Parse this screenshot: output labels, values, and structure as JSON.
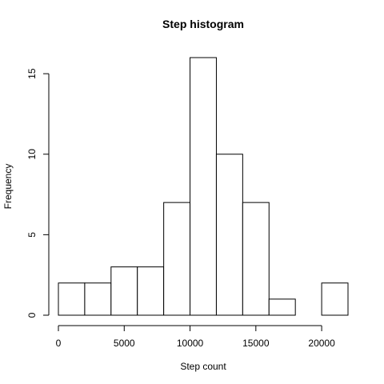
{
  "chart_data": {
    "type": "bar",
    "title": "Step histogram",
    "xlabel": "Step count",
    "ylabel": "Frequency",
    "bins": [
      {
        "start": 0,
        "end": 2000,
        "count": 2
      },
      {
        "start": 2000,
        "end": 4000,
        "count": 2
      },
      {
        "start": 4000,
        "end": 6000,
        "count": 3
      },
      {
        "start": 6000,
        "end": 8000,
        "count": 3
      },
      {
        "start": 8000,
        "end": 10000,
        "count": 7
      },
      {
        "start": 10000,
        "end": 12000,
        "count": 16
      },
      {
        "start": 12000,
        "end": 14000,
        "count": 10
      },
      {
        "start": 14000,
        "end": 16000,
        "count": 7
      },
      {
        "start": 16000,
        "end": 18000,
        "count": 1
      },
      {
        "start": 18000,
        "end": 20000,
        "count": 0
      },
      {
        "start": 20000,
        "end": 22000,
        "count": 2
      }
    ],
    "xlim": [
      0,
      22000
    ],
    "ylim": [
      0,
      16
    ],
    "x_ticks": [
      "0",
      "5000",
      "10000",
      "15000",
      "20000"
    ],
    "y_ticks": [
      "0",
      "5",
      "10",
      "15"
    ],
    "grid": false,
    "colors": {
      "fill": "#ffffff",
      "stroke": "#000000"
    }
  }
}
